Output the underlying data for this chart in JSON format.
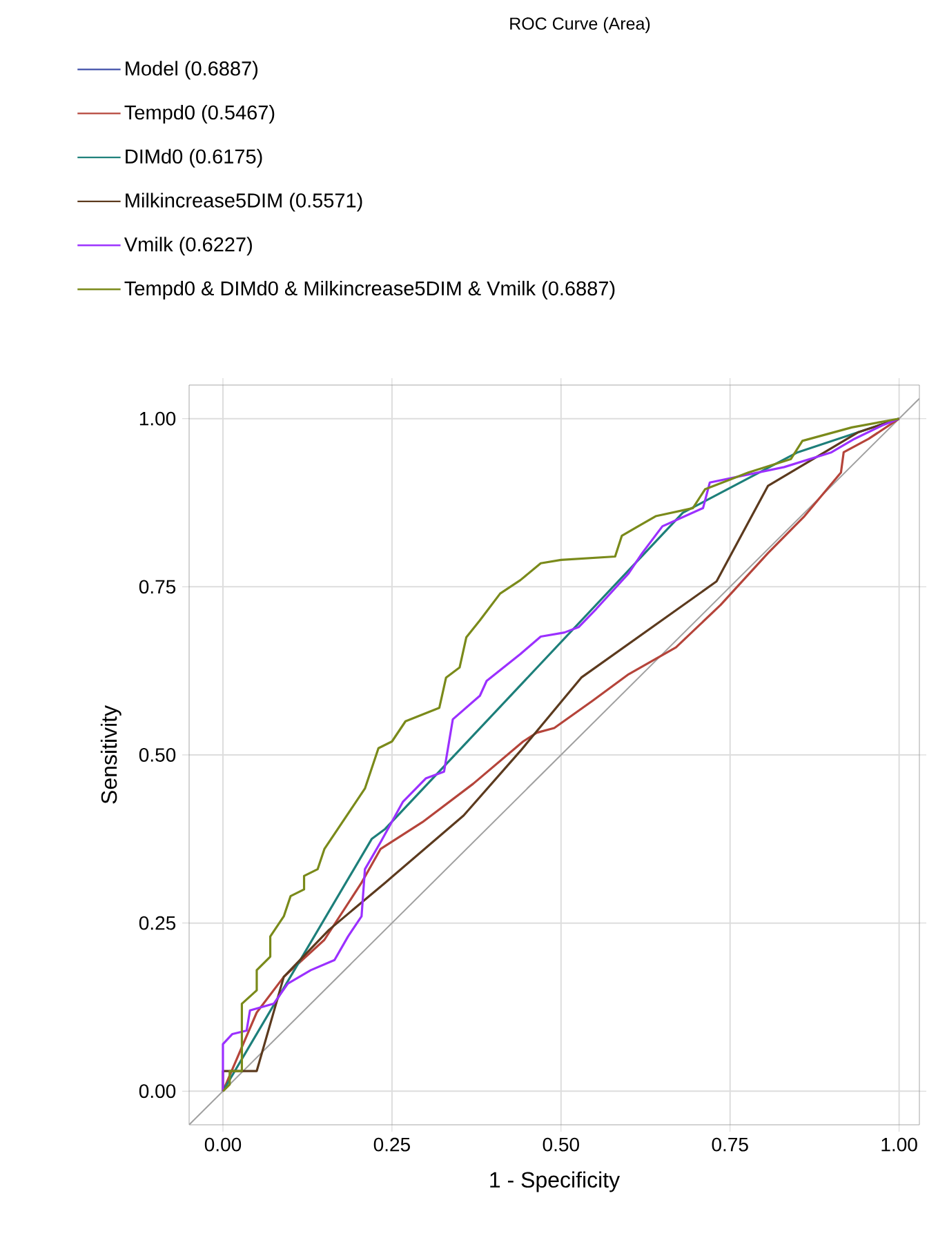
{
  "chart_data": {
    "type": "line",
    "xlabel": "1 - Specificity",
    "ylabel": "Sensitivity",
    "legend_title": "ROC Curve (Area)",
    "legend": "top",
    "grid": true,
    "xlim": [
      -0.05,
      1.03
    ],
    "ylim": [
      -0.05,
      1.05
    ],
    "xticks": [
      {
        "value": 0,
        "label": "0.00"
      },
      {
        "value": 0.25,
        "label": "0.25"
      },
      {
        "value": 0.5,
        "label": "0.50"
      },
      {
        "value": 0.75,
        "label": "0.75"
      },
      {
        "value": 1,
        "label": "1.00"
      }
    ],
    "yticks": [
      {
        "value": 0,
        "label": "0.00"
      },
      {
        "value": 0.25,
        "label": "0.25"
      },
      {
        "value": 0.5,
        "label": "0.50"
      },
      {
        "value": 0.75,
        "label": "0.75"
      },
      {
        "value": 1,
        "label": "1.00"
      }
    ],
    "series": [
      {
        "color": "#a0a0a0",
        "x": [
          -0.05,
          1.03
        ],
        "values": [
          -0.05,
          1.03
        ]
      },
      {
        "name": "Model (0.6887)",
        "color": "#3f4fa8",
        "values": [
          null
        ]
      },
      {
        "name": "Tempd0 (0.5467)",
        "color": "#b5443a",
        "x": [
          0,
          0.05,
          0.09,
          0.15,
          0.205,
          0.233,
          0.295,
          0.37,
          0.444,
          0.464,
          0.49,
          0.546,
          0.6,
          0.67,
          0.736,
          0.806,
          0.86,
          0.914,
          0.918,
          0.955,
          1
        ],
        "values": [
          0,
          0.117,
          0.17,
          0.225,
          0.31,
          0.36,
          0.4,
          0.457,
          0.52,
          0.533,
          0.54,
          0.58,
          0.62,
          0.66,
          0.723,
          0.8,
          0.855,
          0.92,
          0.95,
          0.97,
          1
        ]
      },
      {
        "name": "DIMd0 (0.6175)",
        "color": "#1d7f7a",
        "x": [
          0,
          0.22,
          0.24,
          0.68,
          0.85,
          1
        ],
        "values": [
          0,
          0.375,
          0.39,
          0.86,
          0.95,
          1
        ]
      },
      {
        "name": "Milkincrease5DIM (0.5571)",
        "color": "#5c3a1e",
        "x": [
          0,
          0,
          0.05,
          0.09,
          0.157,
          0.24,
          0.356,
          0.44,
          0.53,
          0.73,
          0.806,
          0.873,
          0.94,
          1
        ],
        "values": [
          0,
          0.03,
          0.03,
          0.17,
          0.24,
          0.31,
          0.41,
          0.506,
          0.615,
          0.758,
          0.9,
          0.94,
          0.98,
          1
        ]
      },
      {
        "name": "Vmilk (0.6227)",
        "color": "#9b30ff",
        "x": [
          0,
          0,
          0.014,
          0.035,
          0.04,
          0.075,
          0.096,
          0.13,
          0.165,
          0.185,
          0.205,
          0.21,
          0.233,
          0.266,
          0.3,
          0.327,
          0.34,
          0.38,
          0.39,
          0.44,
          0.47,
          0.505,
          0.526,
          0.552,
          0.6,
          0.62,
          0.65,
          0.71,
          0.72,
          0.83,
          0.9,
          0.934,
          0.975,
          1
        ],
        "values": [
          0,
          0.07,
          0.085,
          0.09,
          0.12,
          0.13,
          0.16,
          0.18,
          0.195,
          0.23,
          0.26,
          0.33,
          0.37,
          0.43,
          0.465,
          0.475,
          0.553,
          0.588,
          0.61,
          0.65,
          0.676,
          0.682,
          0.69,
          0.717,
          0.77,
          0.8,
          0.84,
          0.867,
          0.905,
          0.928,
          0.95,
          0.97,
          0.99,
          1
        ]
      },
      {
        "name": "Tempd0 & DIMd0 & Milkincrease5DIM & Vmilk (0.6887)",
        "color": "#7a8a1a",
        "x": [
          0,
          0.01,
          0.01,
          0.028,
          0.028,
          0.05,
          0.05,
          0.07,
          0.07,
          0.09,
          0.1,
          0.12,
          0.12,
          0.14,
          0.15,
          0.17,
          0.19,
          0.21,
          0.23,
          0.25,
          0.27,
          0.32,
          0.33,
          0.35,
          0.36,
          0.38,
          0.41,
          0.44,
          0.47,
          0.5,
          0.58,
          0.59,
          0.64,
          0.695,
          0.713,
          0.777,
          0.84,
          0.857,
          0.93,
          1
        ],
        "values": [
          0,
          0.01,
          0.03,
          0.03,
          0.13,
          0.15,
          0.18,
          0.2,
          0.23,
          0.26,
          0.29,
          0.3,
          0.32,
          0.33,
          0.36,
          0.39,
          0.42,
          0.45,
          0.51,
          0.52,
          0.55,
          0.57,
          0.615,
          0.63,
          0.675,
          0.7,
          0.74,
          0.76,
          0.785,
          0.79,
          0.795,
          0.826,
          0.855,
          0.867,
          0.895,
          0.92,
          0.94,
          0.967,
          0.987,
          1
        ]
      }
    ]
  }
}
